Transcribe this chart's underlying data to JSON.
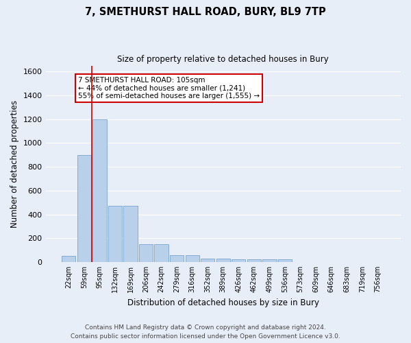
{
  "title1": "7, SMETHURST HALL ROAD, BURY, BL9 7TP",
  "title2": "Size of property relative to detached houses in Bury",
  "xlabel": "Distribution of detached houses by size in Bury",
  "ylabel": "Number of detached properties",
  "bar_labels": [
    "22sqm",
    "59sqm",
    "95sqm",
    "132sqm",
    "169sqm",
    "206sqm",
    "242sqm",
    "279sqm",
    "316sqm",
    "352sqm",
    "389sqm",
    "426sqm",
    "462sqm",
    "499sqm",
    "536sqm",
    "573sqm",
    "609sqm",
    "646sqm",
    "683sqm",
    "719sqm",
    "756sqm"
  ],
  "bar_values": [
    50,
    900,
    1200,
    470,
    470,
    150,
    150,
    60,
    60,
    30,
    30,
    20,
    20,
    20,
    20,
    0,
    0,
    0,
    0,
    0,
    0
  ],
  "bar_color": "#b8d0ea",
  "bar_edgecolor": "#6699cc",
  "annotation_line1": "7 SMETHURST HALL ROAD: 105sqm",
  "annotation_line2": "← 44% of detached houses are smaller (1,241)",
  "annotation_line3": "55% of semi-detached houses are larger (1,555) →",
  "vline_index": 2,
  "vline_color": "#cc0000",
  "ylim": [
    0,
    1650
  ],
  "yticks": [
    0,
    200,
    400,
    600,
    800,
    1000,
    1200,
    1400,
    1600
  ],
  "background_color": "#e8eef8",
  "grid_color": "#ffffff",
  "annotation_box_edgecolor": "#cc0000",
  "annotation_box_facecolor": "#ffffff",
  "footer1": "Contains HM Land Registry data © Crown copyright and database right 2024.",
  "footer2": "Contains public sector information licensed under the Open Government Licence v3.0."
}
